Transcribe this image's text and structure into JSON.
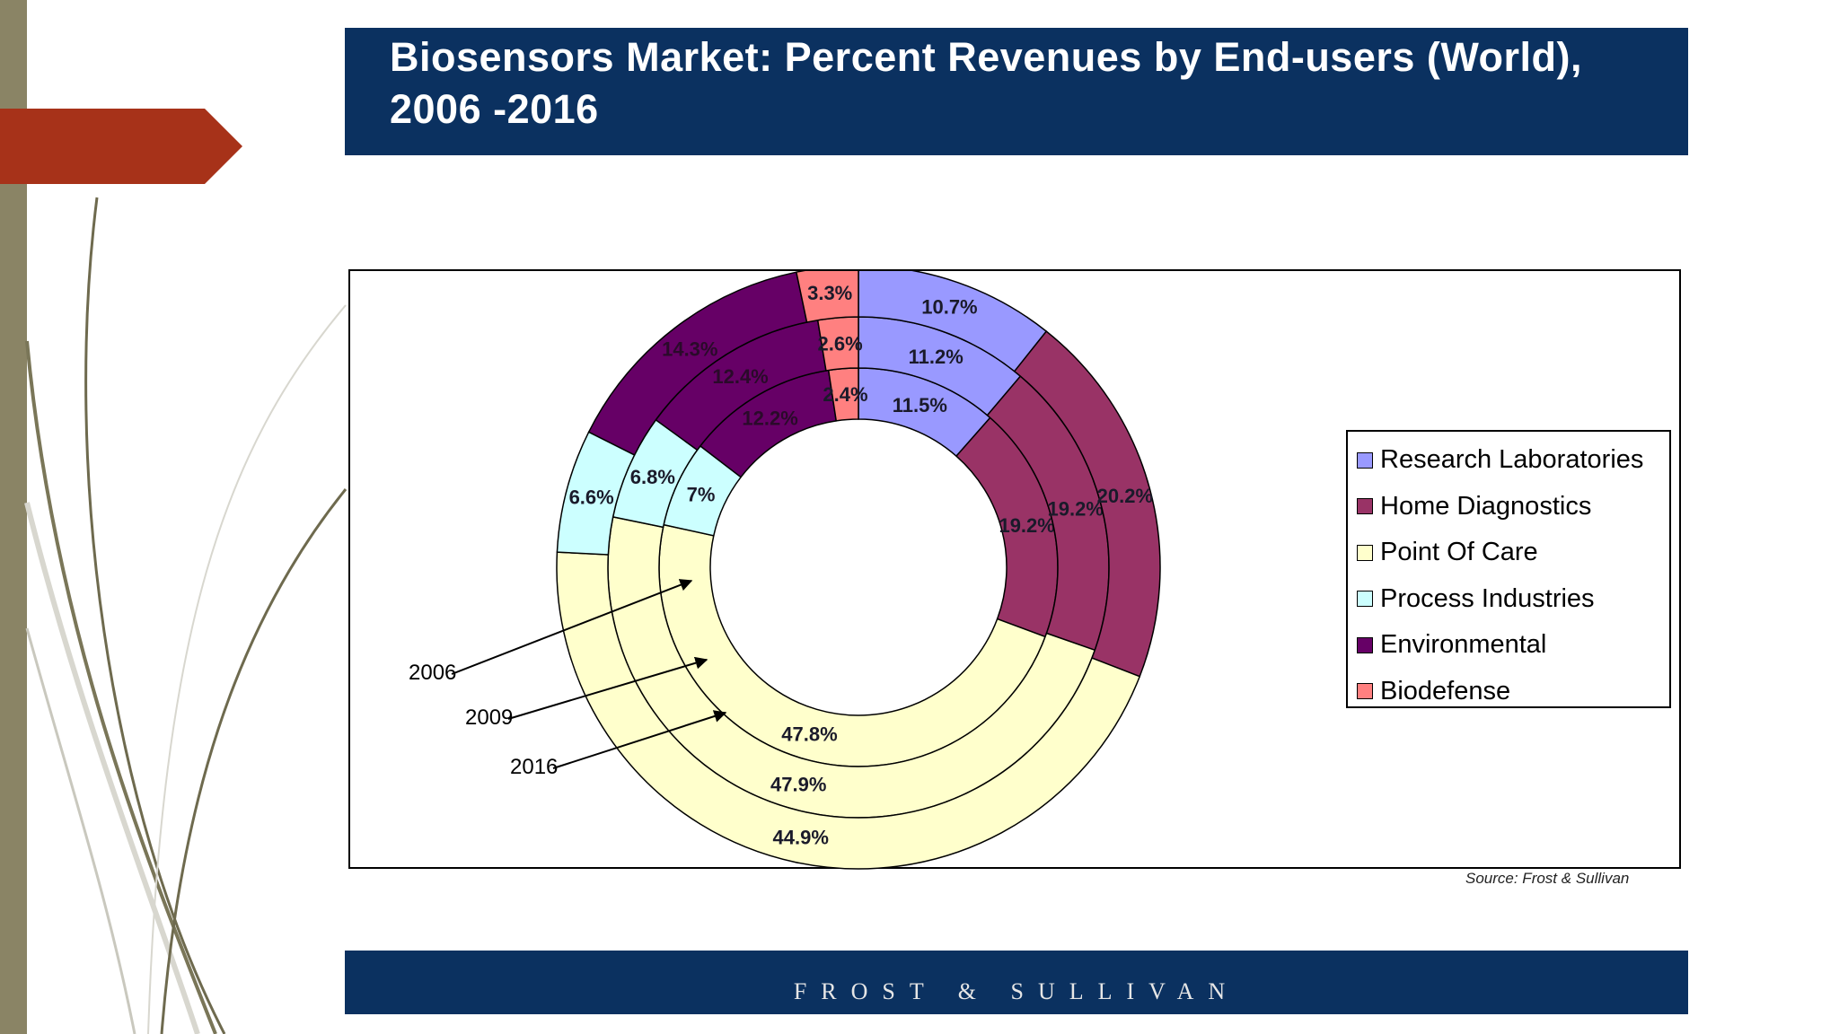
{
  "title": "Biosensors Market: Percent Revenues by End-users (World), 2006 -2016",
  "source": "Source: Frost & Sullivan",
  "footer": "FROST & SULLIVAN",
  "chart_data": {
    "type": "donut",
    "title": "Biosensors Market: Percent Revenues by End-users (World), 2006 -2016",
    "rings": [
      "2006",
      "2009",
      "2016"
    ],
    "categories": [
      "Research Laboratories",
      "Home Diagnostics",
      "Point Of Care",
      "Process Industries",
      "Environmental",
      "Biodefense"
    ],
    "colors": [
      "#9999ff",
      "#993366",
      "#ffffcc",
      "#ccffff",
      "#660066",
      "#ff8080"
    ],
    "series": [
      {
        "name": "2006",
        "values": [
          11.5,
          19.2,
          47.8,
          7,
          12.2,
          2.4
        ],
        "labels": [
          "11.5%",
          "19.2%",
          "47.8%",
          "7%",
          "12.2%",
          "2.4%"
        ]
      },
      {
        "name": "2009",
        "values": [
          11.2,
          19.2,
          47.9,
          6.8,
          12.4,
          2.6
        ],
        "labels": [
          "11.2%",
          "19.2%",
          "47.9%",
          "6.8%",
          "12.4%",
          "2.6%"
        ]
      },
      {
        "name": "2016",
        "values": [
          10.7,
          20.2,
          44.9,
          6.6,
          14.3,
          3.3
        ],
        "labels": [
          "10.7%",
          "20.2%",
          "44.9%",
          "6.6%",
          "14.3%",
          "3.3%"
        ]
      }
    ],
    "legend_position": "right"
  }
}
